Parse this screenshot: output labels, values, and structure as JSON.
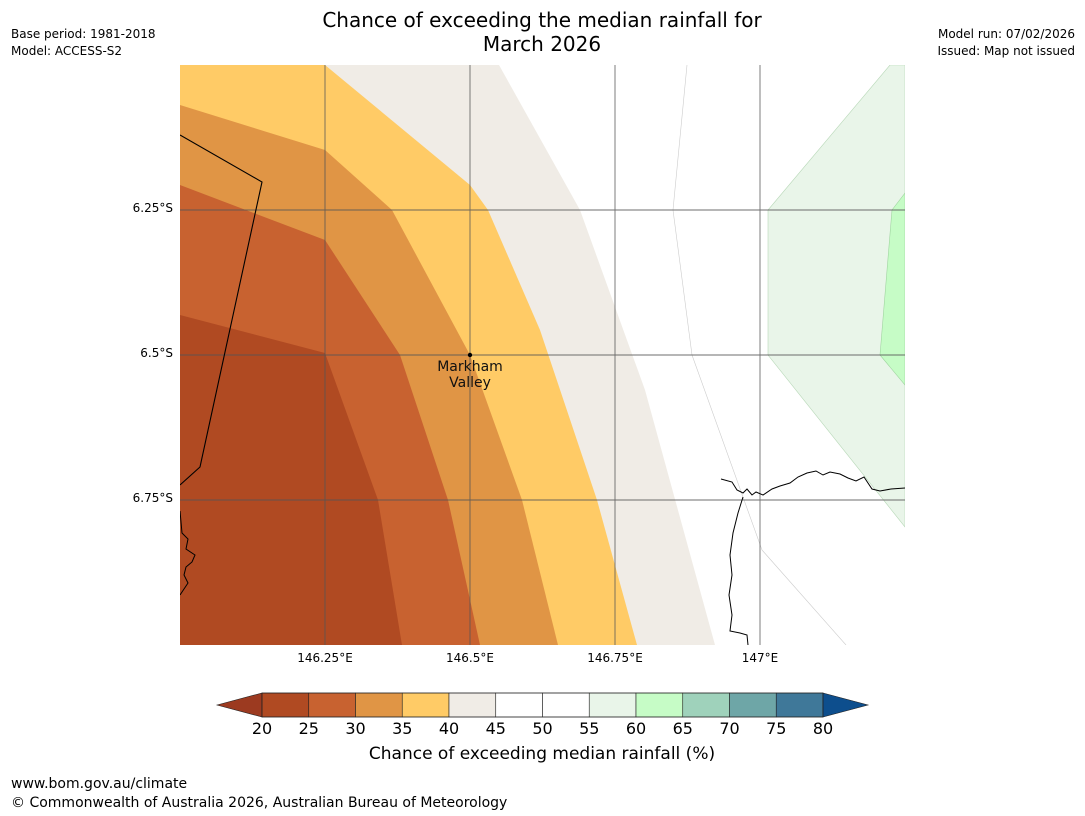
{
  "header": {
    "title_line1": "Chance of exceeding the median rainfall for",
    "title_line2": "March 2026",
    "base_period": "Base period: 1981-2018",
    "model": "Model: ACCESS-S2",
    "model_run": "Model run: 07/02/2026",
    "issued": "Issued: Map not issued"
  },
  "map": {
    "lat_labels": [
      "6.25°S",
      "6.5°S",
      "6.75°S"
    ],
    "lon_labels": [
      "146.25°E",
      "146.5°E",
      "146.75°E",
      "147°E"
    ],
    "place": {
      "name_line1": "Markham",
      "name_line2": "Valley",
      "lat": -6.5,
      "lon": 146.5
    },
    "colors": {
      "band_20_25": "#b04a22",
      "band_25_30": "#c86230",
      "band_30_35": "#e09545",
      "band_35_40": "#ffcb66",
      "band_40_45": "#f0ece6",
      "band_45_55": "#ffffff",
      "band_55_60": "#e9f5e9",
      "band_60_65": "#c6fcc6",
      "grid": "#555555",
      "coast": "#000000"
    }
  },
  "colorbar": {
    "title": "Chance of exceeding median rainfall (%)",
    "ticks": [
      "20",
      "25",
      "30",
      "35",
      "40",
      "45",
      "50",
      "55",
      "60",
      "65",
      "70",
      "75",
      "80"
    ],
    "under_color": "#9c3a20",
    "over_color": "#0d4e8d",
    "colors": [
      "#b04a22",
      "#c86230",
      "#e09545",
      "#ffcb66",
      "#f0ece6",
      "#ffffff",
      "#ffffff",
      "#e9f5e9",
      "#c6fcc6",
      "#9fd2bb",
      "#6ea6a7",
      "#3f7899"
    ]
  },
  "footer": {
    "url": "www.bom.gov.au/climate",
    "copyright": "© Commonwealth of Australia 2026, Australian Bureau of Meteorology"
  }
}
